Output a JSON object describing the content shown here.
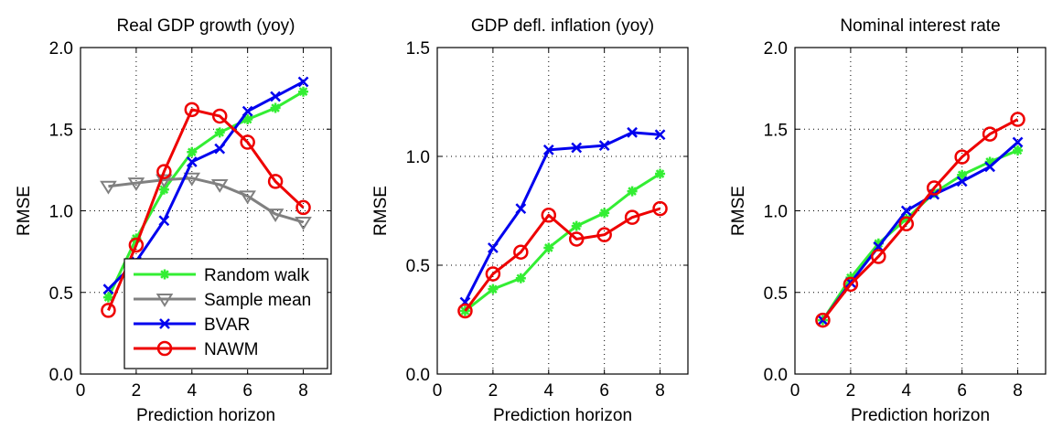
{
  "chart_data": [
    {
      "type": "line",
      "title": "Real GDP growth (yoy)",
      "xlabel": "Prediction horizon",
      "ylabel": "RMSE",
      "xlim": [
        0,
        9
      ],
      "ylim": [
        0,
        2
      ],
      "xticks": [
        0,
        2,
        4,
        6,
        8
      ],
      "xtick_labels": [
        "0",
        "2",
        "4",
        "6",
        "8"
      ],
      "yticks": [
        0,
        0.5,
        1,
        1.5,
        2
      ],
      "ytick_labels": [
        "0.0",
        "0.5",
        "1.0",
        "1.5",
        "2.0"
      ],
      "grid": true,
      "legend": "bottom-left",
      "x": [
        1,
        2,
        3,
        4,
        5,
        6,
        7,
        8
      ],
      "series": [
        {
          "name": "Random walk",
          "color": "#33ee33",
          "marker": "asterisk",
          "values": [
            0.47,
            0.83,
            1.13,
            1.36,
            1.48,
            1.56,
            1.63,
            1.73
          ]
        },
        {
          "name": "Sample mean",
          "color": "#808080",
          "marker": "triangle-down",
          "values": [
            1.15,
            1.17,
            1.19,
            1.2,
            1.16,
            1.09,
            0.98,
            0.93
          ]
        },
        {
          "name": "BVAR",
          "color": "#0000ee",
          "marker": "x",
          "values": [
            0.52,
            0.69,
            0.94,
            1.3,
            1.38,
            1.61,
            1.7,
            1.79
          ]
        },
        {
          "name": "NAWM",
          "color": "#ee0000",
          "marker": "circle",
          "values": [
            0.39,
            0.79,
            1.24,
            1.62,
            1.58,
            1.42,
            1.18,
            1.02
          ]
        }
      ]
    },
    {
      "type": "line",
      "title": "GDP defl. inflation (yoy)",
      "xlabel": "Prediction horizon",
      "ylabel": "RMSE",
      "xlim": [
        0,
        9
      ],
      "ylim": [
        0,
        1.5
      ],
      "xticks": [
        0,
        2,
        4,
        6,
        8
      ],
      "xtick_labels": [
        "0",
        "2",
        "4",
        "6",
        "8"
      ],
      "yticks": [
        0,
        0.5,
        1,
        1.5
      ],
      "ytick_labels": [
        "0.0",
        "0.5",
        "1.0",
        "1.5"
      ],
      "grid": true,
      "x": [
        1,
        2,
        3,
        4,
        5,
        6,
        7,
        8
      ],
      "series": [
        {
          "color": "#33ee33",
          "marker": "asterisk",
          "values": [
            0.29,
            0.39,
            0.44,
            0.58,
            0.68,
            0.74,
            0.84,
            0.92
          ]
        },
        {
          "color": "#0000ee",
          "marker": "x",
          "values": [
            0.33,
            0.58,
            0.76,
            1.03,
            1.04,
            1.05,
            1.11,
            1.1
          ]
        },
        {
          "color": "#ee0000",
          "marker": "circle",
          "values": [
            0.29,
            0.46,
            0.56,
            0.73,
            0.62,
            0.64,
            0.72,
            0.76
          ]
        }
      ]
    },
    {
      "type": "line",
      "title": "Nominal interest rate",
      "xlabel": "Prediction horizon",
      "ylabel": "RMSE",
      "xlim": [
        0,
        9
      ],
      "ylim": [
        0,
        2
      ],
      "xticks": [
        0,
        2,
        4,
        6,
        8
      ],
      "xtick_labels": [
        "0",
        "2",
        "4",
        "6",
        "8"
      ],
      "yticks": [
        0,
        0.5,
        1,
        1.5,
        2
      ],
      "ytick_labels": [
        "0.0",
        "0.5",
        "1.0",
        "1.5",
        "2.0"
      ],
      "grid": true,
      "x": [
        1,
        2,
        3,
        4,
        5,
        6,
        7,
        8
      ],
      "series": [
        {
          "color": "#33ee33",
          "marker": "asterisk",
          "values": [
            0.33,
            0.59,
            0.8,
            0.95,
            1.11,
            1.22,
            1.3,
            1.37
          ]
        },
        {
          "color": "#0000ee",
          "marker": "x",
          "values": [
            0.33,
            0.56,
            0.78,
            1.0,
            1.1,
            1.18,
            1.27,
            1.42
          ]
        },
        {
          "color": "#ee0000",
          "marker": "circle",
          "values": [
            0.33,
            0.55,
            0.72,
            0.92,
            1.14,
            1.33,
            1.47,
            1.56
          ]
        }
      ]
    }
  ]
}
